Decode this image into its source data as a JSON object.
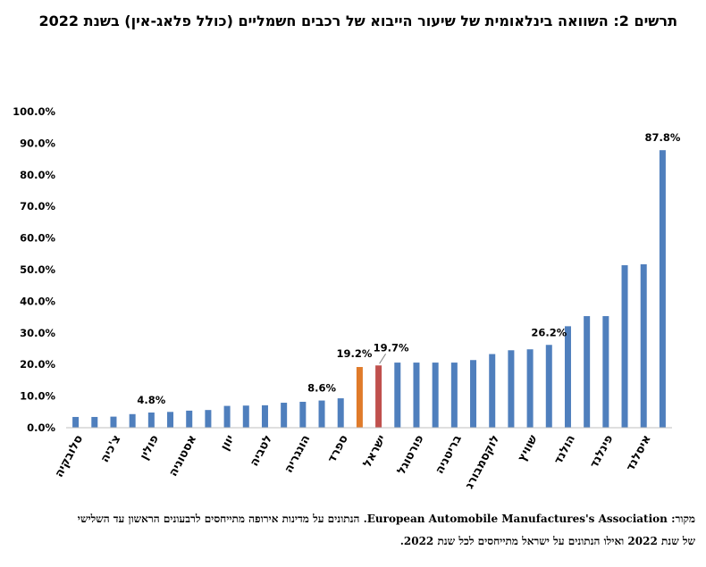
{
  "title": "תרשים 2: השוואה בינלאומית של שיעור הייבוא של רכבים חשמליים (כולל פלאג-אין) בשנת 2022",
  "source": {
    "line1": "מקור: European Automobile Manufactures's Association. הנתונים על מדינות אירופה מתייחסים לרבעונים הראשון עד השלישי",
    "line2": "של שנת 2022 ואילו הנתונים על ישראל מתייחסים לכל שנת 2022."
  },
  "colors": {
    "default": "#4f7fbd",
    "israel": "#c0504d",
    "highlight": "#e07b2a"
  },
  "chart_data": {
    "type": "bar",
    "ylim": [
      0,
      100
    ],
    "yticks": [
      "0.0%",
      "10.0%",
      "20.0%",
      "30.0%",
      "40.0%",
      "50.0%",
      "60.0%",
      "70.0%",
      "80.0%",
      "90.0%",
      "100.0%"
    ],
    "values": [
      3.4,
      3.4,
      3.5,
      4.3,
      4.8,
      5.0,
      5.4,
      5.6,
      6.9,
      7.0,
      7.1,
      7.9,
      8.2,
      8.6,
      9.3,
      19.2,
      19.7,
      20.6,
      20.6,
      20.6,
      20.6,
      21.4,
      23.3,
      24.5,
      24.8,
      26.2,
      32.1,
      35.3,
      35.3,
      51.4,
      51.7,
      87.8
    ],
    "bar_colors": [
      "default",
      "default",
      "default",
      "default",
      "default",
      "default",
      "default",
      "default",
      "default",
      "default",
      "default",
      "default",
      "default",
      "default",
      "default",
      "highlight",
      "israel",
      "default",
      "default",
      "default",
      "default",
      "default",
      "default",
      "default",
      "default",
      "default",
      "default",
      "default",
      "default",
      "default",
      "default",
      "default"
    ],
    "data_labels": [
      {
        "index": 4,
        "text": "4.8%"
      },
      {
        "index": 13,
        "text": "8.6%"
      },
      {
        "index": 15,
        "text": "19.2%"
      },
      {
        "index": 16,
        "text": "19.7%"
      },
      {
        "index": 25,
        "text": "26.2%"
      },
      {
        "index": 31,
        "text": "87.8%"
      }
    ],
    "category_labels": [
      {
        "index": 0,
        "text": "סלובקיה"
      },
      {
        "index": 2,
        "text": "צ'כיה"
      },
      {
        "index": 4,
        "text": "פולין"
      },
      {
        "index": 6,
        "text": "אסטוניה"
      },
      {
        "index": 8,
        "text": "יוון"
      },
      {
        "index": 10,
        "text": "לטביה"
      },
      {
        "index": 12,
        "text": "הונגריה"
      },
      {
        "index": 14,
        "text": "ספרד"
      },
      {
        "index": 16,
        "text": "ישראל"
      },
      {
        "index": 18,
        "text": "פורטוגל"
      },
      {
        "index": 20,
        "text": "בריטניה"
      },
      {
        "index": 22,
        "text": "לוקסמבורג"
      },
      {
        "index": 24,
        "text": "שוויץ"
      },
      {
        "index": 26,
        "text": "הולנד"
      },
      {
        "index": 28,
        "text": "פינלנד"
      },
      {
        "index": 30,
        "text": "איסלנד"
      }
    ],
    "grid": false
  }
}
